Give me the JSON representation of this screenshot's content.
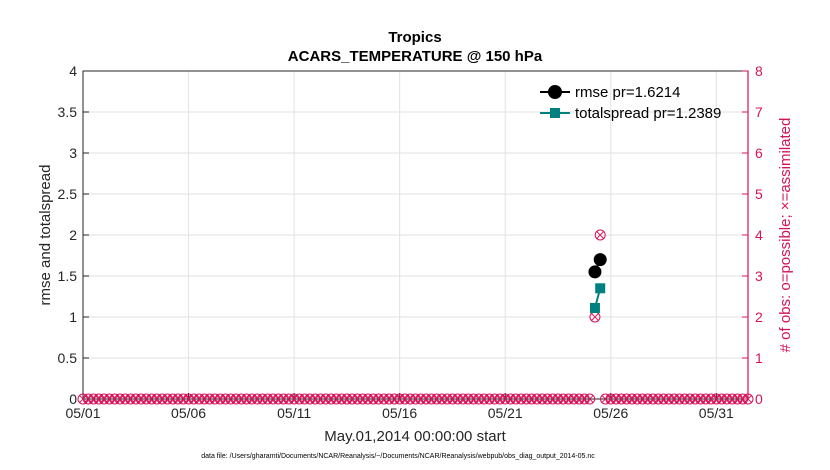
{
  "chart_data": {
    "type": "line",
    "title": "Tropics",
    "subtitle": "ACARS_TEMPERATURE @ 150 hPa",
    "xlabel": "May.01,2014 00:00:00 start",
    "ylabel": "rmse and totalspread",
    "y2label": "# of obs: o=possible; ×=assimilated",
    "xlim": [
      0,
      31.5
    ],
    "ylim": [
      0,
      4
    ],
    "y2lim": [
      0,
      8
    ],
    "x_ticks": [
      {
        "value": 0,
        "label": "05/01"
      },
      {
        "value": 5,
        "label": "05/06"
      },
      {
        "value": 10,
        "label": "05/11"
      },
      {
        "value": 15,
        "label": "05/16"
      },
      {
        "value": 20,
        "label": "05/21"
      },
      {
        "value": 25,
        "label": "05/26"
      },
      {
        "value": 30,
        "label": "05/31"
      }
    ],
    "y_ticks": [
      "0",
      "0.5",
      "1",
      "1.5",
      "2",
      "2.5",
      "3",
      "3.5",
      "4"
    ],
    "y2_ticks": [
      "0",
      "1",
      "2",
      "3",
      "4",
      "5",
      "6",
      "7",
      "8"
    ],
    "series": [
      {
        "name": "rmse",
        "legend": "rmse pr=1.6214",
        "color": "#000000",
        "marker": "circle",
        "x": [
          24.25,
          24.5
        ],
        "y": [
          1.55,
          1.7
        ]
      },
      {
        "name": "totalspread",
        "legend": "totalspread pr=1.2389",
        "color": "#008080",
        "marker": "square",
        "x": [
          24.25,
          24.5
        ],
        "y": [
          1.11,
          1.35
        ]
      }
    ],
    "obs_count": {
      "color": "#d6135a",
      "step": 0.25,
      "start": 0,
      "end": 31.5,
      "nonzero": [
        {
          "x": 24.25,
          "possible": 2,
          "assimilated": 2
        },
        {
          "x": 24.5,
          "possible": 4,
          "assimilated": 4
        }
      ]
    },
    "footnote": "data file: /Users/gharamti/Documents/NCAR/Reanalysis/~/Documents/NCAR/Reanalysis/webpub/obs_diag_output_2014-05.nc"
  }
}
